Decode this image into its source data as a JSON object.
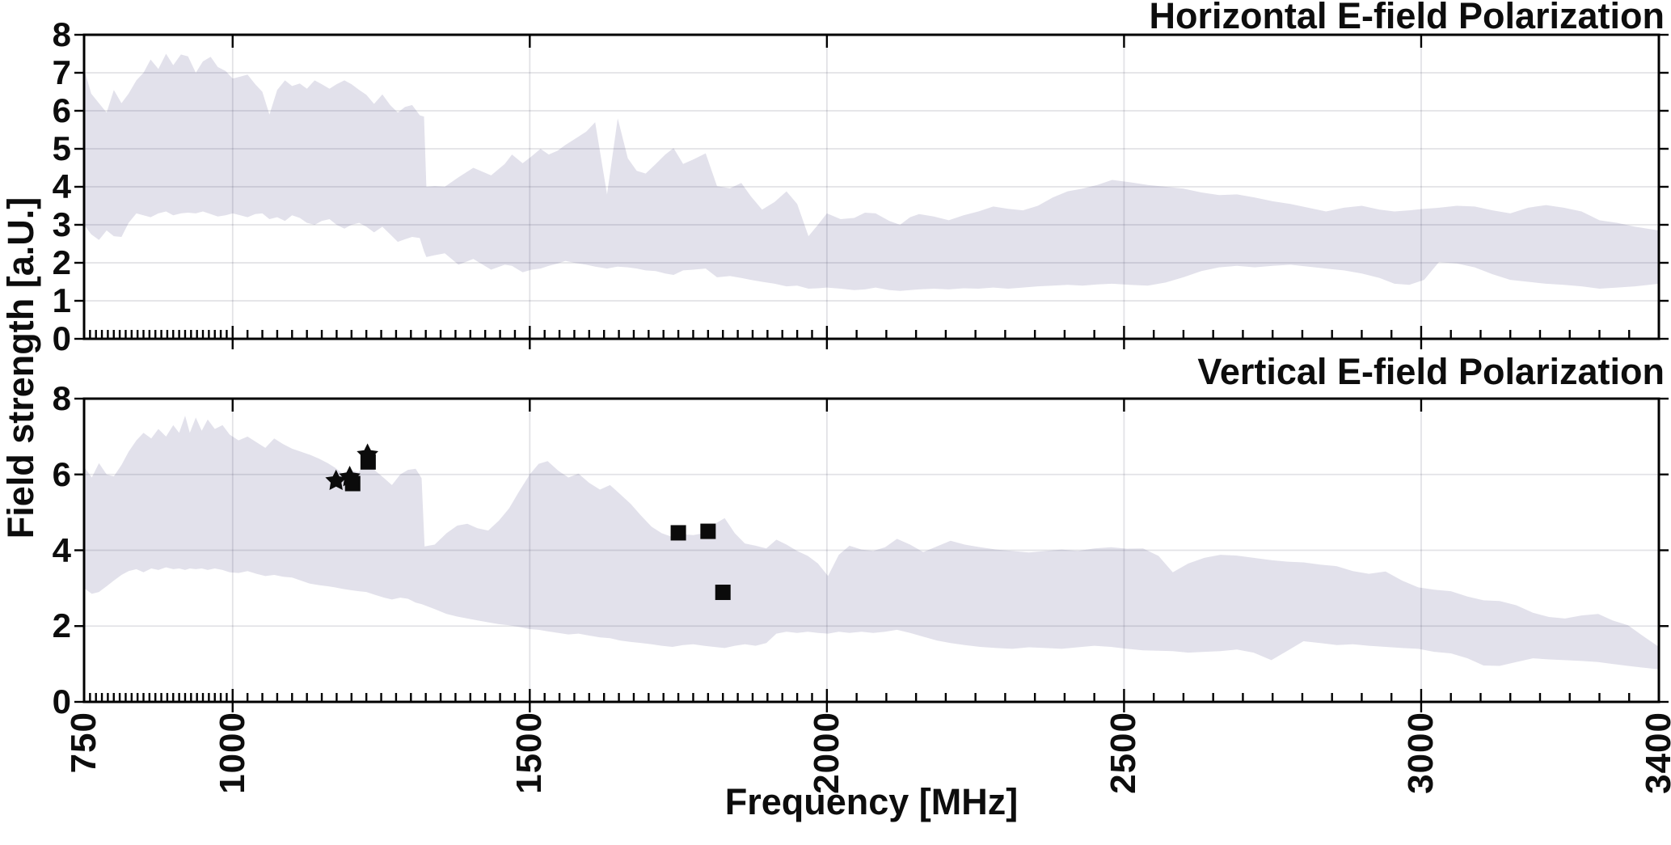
{
  "figure": {
    "titles": {
      "top": "Horizontal E-field Polarization",
      "bottom": "Vertical E-field Polarization"
    },
    "xlabel": "Frequency [MHz]",
    "ylabel": "Field strength [a.U.]"
  },
  "style": {
    "background": "#ffffff",
    "band_fill": "#E2E1EB",
    "grid_color": "rgba(60,60,85,0.15)",
    "axis_color": "#000000",
    "marker_color": "#0b0b0b",
    "text_color": "#0d0d0d"
  },
  "chart_data": [
    {
      "type": "area",
      "title": "Horizontal E-field Polarization",
      "xlabel": "Frequency [MHz]",
      "ylabel": "Field strength [a.U.]",
      "xlim": [
        750,
        3400
      ],
      "ylim": [
        0,
        8
      ],
      "xticks": [
        750,
        1000,
        1500,
        2000,
        2500,
        3000,
        3400
      ],
      "xgrid": [
        1000,
        1500,
        2000,
        2500,
        3000
      ],
      "yticks": [
        0,
        1,
        2,
        3,
        4,
        5,
        6,
        7,
        8
      ],
      "ygrid": [
        1,
        2,
        3,
        4,
        5,
        6,
        7
      ],
      "x_minor_tick_ranges": [
        [
          750,
          1000,
          10
        ],
        [
          1000,
          2000,
          25
        ],
        [
          2000,
          3400,
          50
        ]
      ],
      "legend": "none",
      "band": {
        "x": [
          750,
          762,
          775,
          788,
          800,
          813,
          825,
          838,
          850,
          862,
          875,
          888,
          900,
          913,
          925,
          938,
          950,
          963,
          975,
          988,
          1000,
          1013,
          1025,
          1038,
          1050,
          1062,
          1075,
          1088,
          1100,
          1113,
          1125,
          1138,
          1150,
          1163,
          1175,
          1188,
          1200,
          1213,
          1225,
          1238,
          1252,
          1265,
          1278,
          1290,
          1302,
          1315,
          1322,
          1326,
          1340,
          1357,
          1380,
          1405,
          1435,
          1458,
          1470,
          1488,
          1503,
          1518,
          1532,
          1547,
          1560,
          1575,
          1595,
          1610,
          1630,
          1648,
          1665,
          1680,
          1695,
          1712,
          1728,
          1742,
          1758,
          1775,
          1796,
          1815,
          1837,
          1856,
          1872,
          1891,
          1912,
          1932,
          1950,
          1969,
          1985,
          2000,
          2023,
          2046,
          2064,
          2082,
          2105,
          2123,
          2140,
          2155,
          2180,
          2205,
          2230,
          2255,
          2280,
          2305,
          2330,
          2355,
          2380,
          2405,
          2430,
          2455,
          2480,
          2510,
          2540,
          2570,
          2600,
          2630,
          2660,
          2690,
          2720,
          2750,
          2780,
          2810,
          2840,
          2870,
          2900,
          2930,
          2955,
          2980,
          3005,
          3030,
          3060,
          3090,
          3120,
          3150,
          3180,
          3210,
          3240,
          3270,
          3300,
          3330,
          3360,
          3400
        ],
        "lower": [
          3.0,
          2.75,
          2.6,
          2.85,
          2.7,
          2.68,
          3.05,
          3.3,
          3.25,
          3.2,
          3.3,
          3.35,
          3.25,
          3.3,
          3.32,
          3.3,
          3.35,
          3.28,
          3.22,
          3.25,
          3.3,
          3.25,
          3.2,
          3.28,
          3.3,
          3.15,
          3.2,
          3.1,
          3.25,
          3.18,
          3.05,
          3.0,
          3.1,
          3.15,
          3.0,
          2.9,
          3.0,
          3.05,
          2.95,
          2.8,
          2.95,
          2.75,
          2.55,
          2.62,
          2.68,
          2.65,
          2.3,
          2.15,
          2.2,
          2.25,
          1.95,
          2.1,
          1.82,
          1.95,
          1.92,
          1.75,
          1.82,
          1.85,
          1.92,
          1.98,
          2.05,
          2.0,
          1.95,
          1.9,
          1.85,
          1.9,
          1.88,
          1.85,
          1.8,
          1.78,
          1.72,
          1.68,
          1.8,
          1.82,
          1.85,
          1.62,
          1.65,
          1.6,
          1.55,
          1.5,
          1.45,
          1.38,
          1.4,
          1.32,
          1.33,
          1.35,
          1.32,
          1.28,
          1.3,
          1.35,
          1.28,
          1.26,
          1.28,
          1.3,
          1.32,
          1.3,
          1.33,
          1.32,
          1.35,
          1.32,
          1.35,
          1.38,
          1.4,
          1.42,
          1.4,
          1.43,
          1.45,
          1.42,
          1.4,
          1.48,
          1.62,
          1.78,
          1.88,
          1.92,
          1.88,
          1.92,
          1.95,
          1.9,
          1.85,
          1.8,
          1.72,
          1.6,
          1.45,
          1.42,
          1.55,
          2.02,
          1.98,
          1.88,
          1.7,
          1.55,
          1.5,
          1.45,
          1.42,
          1.38,
          1.32,
          1.35,
          1.38,
          1.45
        ],
        "upper": [
          7.1,
          6.45,
          6.2,
          5.95,
          6.55,
          6.2,
          6.45,
          6.8,
          7.0,
          7.35,
          7.1,
          7.5,
          7.2,
          7.48,
          7.43,
          7.0,
          7.3,
          7.42,
          7.15,
          7.05,
          6.85,
          6.9,
          6.95,
          6.7,
          6.5,
          5.9,
          6.55,
          6.8,
          6.65,
          6.72,
          6.58,
          6.8,
          6.7,
          6.58,
          6.7,
          6.8,
          6.7,
          6.55,
          6.42,
          6.18,
          6.43,
          6.15,
          5.95,
          6.1,
          6.15,
          5.88,
          5.85,
          4.0,
          4.02,
          4.0,
          4.25,
          4.5,
          4.3,
          4.6,
          4.85,
          4.62,
          4.8,
          5.0,
          4.85,
          4.95,
          5.1,
          5.25,
          5.45,
          5.7,
          3.8,
          5.8,
          4.75,
          4.42,
          4.35,
          4.6,
          4.85,
          5.02,
          4.6,
          4.72,
          4.88,
          4.02,
          3.96,
          4.1,
          3.75,
          3.4,
          3.6,
          3.88,
          3.55,
          2.7,
          3.0,
          3.3,
          3.15,
          3.18,
          3.32,
          3.3,
          3.1,
          3.0,
          3.2,
          3.28,
          3.22,
          3.12,
          3.25,
          3.35,
          3.48,
          3.42,
          3.38,
          3.5,
          3.72,
          3.88,
          3.95,
          4.05,
          4.18,
          4.12,
          4.05,
          4.0,
          3.95,
          3.85,
          3.78,
          3.8,
          3.72,
          3.62,
          3.55,
          3.45,
          3.35,
          3.45,
          3.5,
          3.4,
          3.35,
          3.38,
          3.42,
          3.45,
          3.5,
          3.48,
          3.38,
          3.3,
          3.45,
          3.52,
          3.45,
          3.35,
          3.12,
          3.05,
          2.95,
          2.85
        ]
      },
      "markers": {
        "squares": [],
        "stars": []
      }
    },
    {
      "type": "area",
      "title": "Vertical E-field Polarization",
      "xlabel": "Frequency [MHz]",
      "ylabel": "Field strength [a.U.]",
      "xlim": [
        750,
        3400
      ],
      "ylim": [
        0,
        8
      ],
      "xticks": [
        750,
        1000,
        1500,
        2000,
        2500,
        3000,
        3400
      ],
      "xgrid": [
        1000,
        1500,
        2000,
        2500,
        3000
      ],
      "yticks": [
        0,
        2,
        4,
        6,
        8
      ],
      "ygrid": [
        2,
        4,
        6
      ],
      "x_minor_tick_ranges": [
        [
          750,
          1000,
          10
        ],
        [
          1000,
          2000,
          25
        ],
        [
          2000,
          3400,
          50
        ]
      ],
      "legend": "none",
      "band": {
        "x": [
          750,
          763,
          775,
          788,
          800,
          813,
          825,
          838,
          850,
          863,
          875,
          888,
          900,
          910,
          920,
          928,
          938,
          948,
          958,
          970,
          983,
          995,
          1010,
          1025,
          1040,
          1055,
          1070,
          1085,
          1100,
          1115,
          1130,
          1145,
          1160,
          1172,
          1185,
          1198,
          1212,
          1225,
          1240,
          1255,
          1268,
          1282,
          1295,
          1308,
          1318,
          1323,
          1340,
          1360,
          1378,
          1395,
          1412,
          1430,
          1448,
          1465,
          1482,
          1500,
          1515,
          1530,
          1548,
          1565,
          1582,
          1600,
          1618,
          1635,
          1652,
          1670,
          1688,
          1705,
          1722,
          1740,
          1758,
          1775,
          1793,
          1810,
          1828,
          1845,
          1862,
          1880,
          1898,
          1915,
          1932,
          1950,
          1968,
          1985,
          2002,
          2020,
          2038,
          2058,
          2078,
          2098,
          2118,
          2140,
          2162,
          2185,
          2208,
          2232,
          2258,
          2285,
          2312,
          2340,
          2368,
          2395,
          2422,
          2450,
          2478,
          2505,
          2532,
          2558,
          2582,
          2608,
          2635,
          2662,
          2690,
          2718,
          2748,
          2775,
          2802,
          2830,
          2858,
          2885,
          2912,
          2940,
          2968,
          2995,
          3022,
          3050,
          3078,
          3105,
          3132,
          3160,
          3188,
          3215,
          3242,
          3270,
          3298,
          3322,
          3348,
          3375,
          3400
        ],
        "lower": [
          3.0,
          2.85,
          2.9,
          3.05,
          3.2,
          3.35,
          3.45,
          3.5,
          3.42,
          3.52,
          3.48,
          3.55,
          3.5,
          3.52,
          3.48,
          3.52,
          3.5,
          3.52,
          3.48,
          3.52,
          3.48,
          3.42,
          3.4,
          3.45,
          3.38,
          3.32,
          3.35,
          3.3,
          3.28,
          3.2,
          3.12,
          3.08,
          3.05,
          3.02,
          2.98,
          2.95,
          2.92,
          2.9,
          2.82,
          2.75,
          2.7,
          2.75,
          2.72,
          2.62,
          2.58,
          2.55,
          2.45,
          2.32,
          2.25,
          2.2,
          2.15,
          2.1,
          2.05,
          2.02,
          1.98,
          1.92,
          1.9,
          1.86,
          1.82,
          1.78,
          1.8,
          1.75,
          1.7,
          1.68,
          1.62,
          1.58,
          1.55,
          1.52,
          1.48,
          1.45,
          1.5,
          1.52,
          1.48,
          1.45,
          1.42,
          1.48,
          1.52,
          1.48,
          1.55,
          1.8,
          1.85,
          1.82,
          1.85,
          1.82,
          1.8,
          1.85,
          1.82,
          1.85,
          1.82,
          1.85,
          1.9,
          1.82,
          1.72,
          1.62,
          1.55,
          1.5,
          1.45,
          1.42,
          1.4,
          1.44,
          1.42,
          1.4,
          1.44,
          1.48,
          1.45,
          1.4,
          1.36,
          1.35,
          1.34,
          1.3,
          1.32,
          1.34,
          1.38,
          1.3,
          1.1,
          1.35,
          1.6,
          1.55,
          1.5,
          1.52,
          1.48,
          1.45,
          1.42,
          1.4,
          1.32,
          1.28,
          1.15,
          0.96,
          0.95,
          1.05,
          1.15,
          1.12,
          1.1,
          1.08,
          1.05,
          1.0,
          0.95,
          0.9,
          0.86
        ],
        "upper": [
          6.2,
          5.92,
          6.3,
          6.0,
          5.95,
          6.25,
          6.6,
          6.9,
          7.1,
          6.95,
          7.2,
          7.0,
          7.3,
          7.1,
          7.55,
          7.1,
          7.5,
          7.15,
          7.45,
          7.2,
          7.3,
          7.05,
          6.9,
          7.0,
          6.85,
          6.7,
          6.95,
          6.8,
          6.68,
          6.6,
          6.52,
          6.42,
          6.3,
          6.18,
          6.02,
          6.12,
          6.05,
          6.38,
          6.1,
          5.9,
          5.72,
          6.0,
          6.12,
          6.15,
          5.9,
          4.1,
          4.15,
          4.45,
          4.65,
          4.7,
          4.58,
          4.52,
          4.78,
          5.1,
          5.55,
          6.0,
          6.28,
          6.35,
          6.1,
          5.92,
          6.02,
          5.78,
          5.6,
          5.72,
          5.48,
          5.22,
          4.9,
          4.62,
          4.45,
          4.35,
          4.42,
          4.4,
          4.45,
          4.68,
          4.85,
          4.45,
          4.18,
          4.12,
          4.05,
          4.28,
          4.15,
          3.98,
          3.85,
          3.65,
          3.32,
          3.88,
          4.12,
          4.02,
          3.98,
          4.08,
          4.3,
          4.15,
          3.95,
          4.1,
          4.25,
          4.15,
          4.08,
          4.02,
          3.98,
          3.94,
          3.98,
          4.02,
          3.98,
          4.05,
          4.08,
          4.04,
          4.05,
          3.85,
          3.42,
          3.65,
          3.8,
          3.88,
          3.86,
          3.8,
          3.74,
          3.7,
          3.68,
          3.62,
          3.58,
          3.45,
          3.38,
          3.44,
          3.2,
          3.02,
          2.96,
          2.92,
          2.78,
          2.68,
          2.66,
          2.55,
          2.35,
          2.24,
          2.2,
          2.28,
          2.32,
          2.15,
          2.02,
          1.72,
          1.45
        ]
      },
      "markers": {
        "squares": [
          [
            1202,
            5.76
          ],
          [
            1228,
            6.33
          ],
          [
            1750,
            4.46
          ],
          [
            1800,
            4.5
          ],
          [
            1825,
            2.89
          ]
        ],
        "stars": [
          [
            1174,
            5.83
          ],
          [
            1197,
            5.93
          ],
          [
            1227,
            6.52
          ]
        ]
      }
    }
  ]
}
